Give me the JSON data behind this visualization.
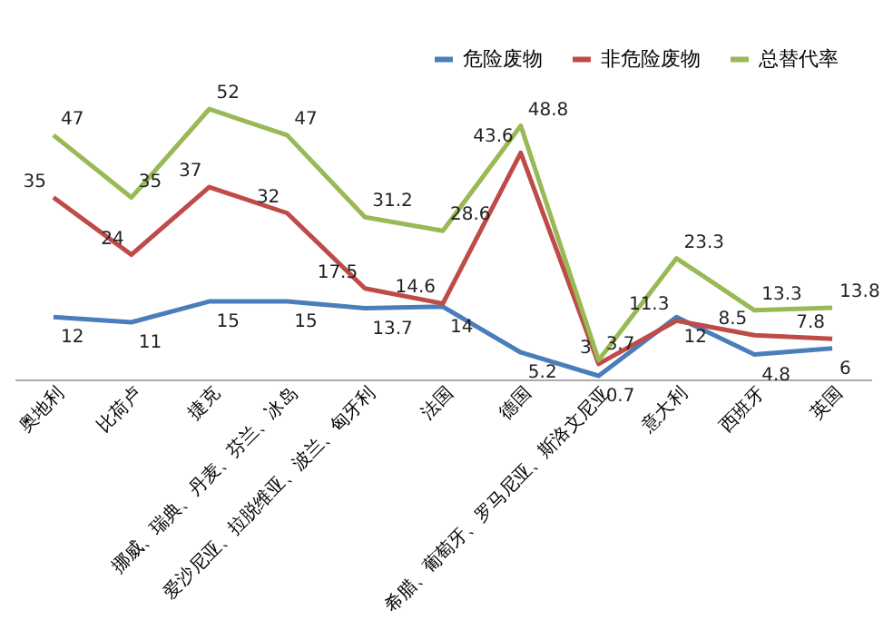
{
  "chart_data": {
    "type": "line",
    "categories": [
      "奥地利",
      "比荷卢",
      "捷克",
      "挪威、瑞典、丹麦、芬兰、冰岛",
      "爱沙尼亚、拉脱维亚、波兰、匈牙利",
      "法国",
      "德国",
      "希腊、葡萄牙、罗马尼亚、斯洛文尼亚",
      "意大利",
      "西班牙",
      "英国"
    ],
    "series": [
      {
        "name": "危险废物",
        "color": "#4a7ebb",
        "values": [
          12,
          11,
          15,
          15,
          13.7,
          14,
          5.2,
          0.7,
          12,
          4.8,
          6
        ]
      },
      {
        "name": "非危险废物",
        "color": "#be4b48",
        "values": [
          35,
          24,
          37,
          32,
          17.5,
          14.6,
          43.6,
          3,
          11.3,
          8.5,
          7.8
        ]
      },
      {
        "name": "总替代率",
        "color": "#98b954",
        "values": [
          47,
          35,
          52,
          47,
          31.2,
          28.6,
          48.8,
          3.7,
          23.3,
          13.3,
          13.8
        ]
      }
    ],
    "data_labels": true,
    "legend": "top right",
    "grid": false,
    "marker": "none",
    "line_style": "solid",
    "tick_labels": "x"
  }
}
